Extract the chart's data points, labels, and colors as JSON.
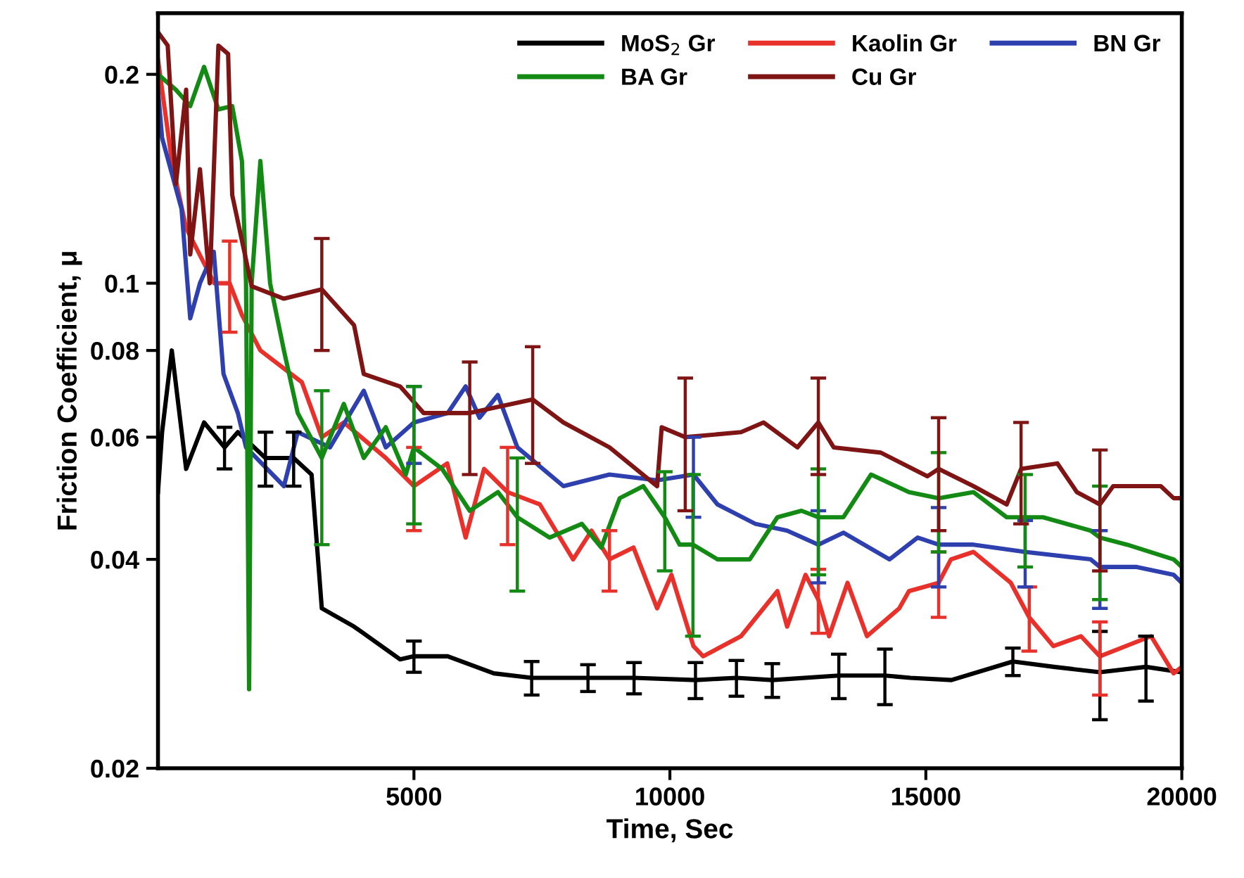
{
  "chart_data": {
    "type": "line",
    "xlabel": "Time, Sec",
    "ylabel": "Friction Coefficient, μ",
    "log": "y",
    "xlim": [
      0,
      20000
    ],
    "ylim": [
      0.02,
      0.245
    ],
    "xticks": [
      5000,
      10000,
      15000,
      20000
    ],
    "yticks": [
      0.02,
      0.04,
      0.06,
      0.08,
      0.1,
      0.2
    ],
    "grid": false,
    "legend": "top right",
    "marker": "none",
    "line_style": "solid",
    "series": [
      {
        "name": "MoS$_{2}$ Gr",
        "color": "#000000",
        "x": [
          0,
          80,
          270,
          550,
          900,
          1300,
          1560,
          2100,
          2650,
          3000,
          3200,
          3830,
          4730,
          5000,
          5660,
          6560,
          7300,
          8400,
          9300,
          10500,
          11300,
          12000,
          13300,
          14200,
          14700,
          15500,
          16700,
          17500,
          18400,
          19300,
          20000
        ],
        "values": [
          0.05,
          0.061,
          0.08,
          0.054,
          0.063,
          0.058,
          0.061,
          0.056,
          0.056,
          0.053,
          0.034,
          0.032,
          0.0287,
          0.029,
          0.029,
          0.0274,
          0.027,
          0.027,
          0.027,
          0.0268,
          0.027,
          0.0268,
          0.0272,
          0.0272,
          0.027,
          0.0268,
          0.0285,
          0.028,
          0.0275,
          0.028,
          0.0275
        ],
        "errors": [
          null,
          null,
          null,
          null,
          null,
          0.004,
          null,
          0.005,
          0.005,
          null,
          null,
          null,
          null,
          0.0015,
          null,
          null,
          0.0015,
          0.0012,
          0.0014,
          0.0016,
          0.0016,
          0.0015,
          0.002,
          0.0025,
          null,
          null,
          0.0013,
          null,
          0.004,
          0.003,
          null
        ]
      },
      {
        "name": "Kaolin Gr",
        "color": "#e8312a",
        "x": [
          0,
          270,
          550,
          1100,
          1400,
          1640,
          2000,
          2810,
          3200,
          3630,
          4450,
          5000,
          5650,
          6010,
          6370,
          6830,
          7460,
          8110,
          8470,
          8820,
          9290,
          9750,
          10030,
          10460,
          10650,
          11390,
          12100,
          12290,
          12650,
          12900,
          13110,
          13470,
          13850,
          14480,
          14670,
          15250,
          15490,
          15930,
          16660,
          17020,
          17490,
          18030,
          18400,
          19400,
          19840,
          20000
        ],
        "values": [
          0.21,
          0.15,
          0.12,
          0.1,
          0.1,
          0.09,
          0.08,
          0.072,
          0.06,
          0.063,
          0.056,
          0.051,
          0.055,
          0.043,
          0.054,
          0.05,
          0.048,
          0.04,
          0.044,
          0.04,
          0.0416,
          0.034,
          0.038,
          0.03,
          0.029,
          0.031,
          0.036,
          0.032,
          0.038,
          0.035,
          0.031,
          0.037,
          0.031,
          0.034,
          0.036,
          0.037,
          0.04,
          0.041,
          0.037,
          0.033,
          0.03,
          0.031,
          0.029,
          0.031,
          0.0274,
          0.028
        ],
        "errors": [
          null,
          null,
          null,
          null,
          0.015,
          null,
          null,
          null,
          null,
          null,
          null,
          0.007,
          null,
          null,
          null,
          0.008,
          null,
          null,
          null,
          0.004,
          null,
          null,
          null,
          null,
          null,
          null,
          null,
          null,
          null,
          0.0037,
          null,
          null,
          null,
          null,
          null,
          0.004,
          null,
          null,
          null,
          0.0035,
          null,
          null,
          0.0035,
          null,
          null,
          null
        ]
      },
      {
        "name": "BN Gr",
        "color": "#2e3fae",
        "x": [
          0,
          80,
          460,
          630,
          820,
          1090,
          1280,
          1560,
          1720,
          2460,
          2730,
          3360,
          4020,
          4450,
          5000,
          5660,
          6010,
          6280,
          6640,
          7020,
          7920,
          8820,
          9750,
          10460,
          10930,
          11670,
          12290,
          12900,
          13390,
          14290,
          14840,
          15250,
          15930,
          16940,
          18220,
          18400,
          19120,
          19840,
          20000
        ],
        "values": [
          0.19,
          0.162,
          0.128,
          0.089,
          0.1,
          0.111,
          0.074,
          0.065,
          0.058,
          0.051,
          0.061,
          0.058,
          0.07,
          0.058,
          0.063,
          0.065,
          0.071,
          0.064,
          0.069,
          0.058,
          0.051,
          0.053,
          0.052,
          0.053,
          0.048,
          0.045,
          0.044,
          0.042,
          0.0437,
          0.04,
          0.043,
          0.042,
          0.042,
          0.041,
          0.04,
          0.039,
          0.039,
          0.038,
          0.037
        ],
        "errors": [
          null,
          null,
          null,
          null,
          null,
          null,
          null,
          null,
          null,
          null,
          null,
          null,
          null,
          null,
          0.008,
          null,
          null,
          null,
          null,
          null,
          null,
          null,
          null,
          0.007,
          null,
          null,
          null,
          0.005,
          null,
          null,
          null,
          0.0055,
          null,
          0.0045,
          null,
          0.005,
          null,
          null,
          null
        ]
      },
      {
        "name": "BA Gr",
        "color": "#138a13",
        "x": [
          0,
          350,
          630,
          900,
          1180,
          1450,
          1640,
          1720,
          1780,
          1830,
          2000,
          2190,
          2460,
          2730,
          3200,
          3630,
          4020,
          4450,
          4840,
          5000,
          5550,
          6090,
          6640,
          7020,
          7650,
          8280,
          8660,
          9020,
          9480,
          9900,
          10190,
          10450,
          10930,
          11560,
          12100,
          12570,
          12900,
          13390,
          13930,
          14670,
          15250,
          15930,
          16580,
          16940,
          17290,
          18220,
          18400,
          18930,
          19840,
          20000
        ],
        "values": [
          0.2,
          0.19,
          0.18,
          0.205,
          0.178,
          0.18,
          0.15,
          0.1,
          0.026,
          0.1,
          0.15,
          0.1,
          0.08,
          0.065,
          0.056,
          0.067,
          0.056,
          0.062,
          0.053,
          0.058,
          0.054,
          0.047,
          0.05,
          0.046,
          0.043,
          0.045,
          0.0416,
          0.049,
          0.051,
          0.046,
          0.042,
          0.042,
          0.04,
          0.04,
          0.046,
          0.047,
          0.046,
          0.046,
          0.053,
          0.05,
          0.049,
          0.05,
          0.046,
          0.046,
          0.046,
          0.044,
          0.043,
          0.042,
          0.04,
          0.039
        ],
        "errors": [
          null,
          null,
          null,
          null,
          null,
          null,
          null,
          null,
          null,
          null,
          null,
          null,
          null,
          null,
          0.014,
          null,
          null,
          null,
          null,
          0.013,
          null,
          null,
          null,
          0.01,
          null,
          null,
          null,
          null,
          null,
          0.0075,
          null,
          0.011,
          null,
          null,
          null,
          null,
          0.008,
          null,
          null,
          null,
          0.008,
          null,
          null,
          0.007,
          null,
          null,
          0.008,
          null,
          null,
          null
        ]
      },
      {
        "name": "Cu Gr",
        "color": "#7f1414",
        "x": [
          0,
          190,
          350,
          550,
          630,
          820,
          1010,
          1180,
          1370,
          1450,
          1830,
          2460,
          3200,
          3830,
          4020,
          4730,
          5190,
          6090,
          7320,
          7920,
          8820,
          9750,
          9840,
          10300,
          11390,
          11830,
          12490,
          12900,
          13200,
          14120,
          15030,
          15250,
          15930,
          16580,
          16860,
          17570,
          17950,
          18400,
          18660,
          19590,
          19840,
          20000
        ],
        "values": [
          0.23,
          0.22,
          0.139,
          0.19,
          0.11,
          0.146,
          0.1,
          0.22,
          0.214,
          0.134,
          0.099,
          0.095,
          0.098,
          0.087,
          0.074,
          0.071,
          0.065,
          0.065,
          0.068,
          0.063,
          0.058,
          0.051,
          0.062,
          0.06,
          0.061,
          0.063,
          0.058,
          0.063,
          0.058,
          0.057,
          0.0527,
          0.054,
          0.051,
          0.048,
          0.054,
          0.055,
          0.05,
          0.048,
          0.051,
          0.051,
          0.049,
          0.049
        ],
        "errors": [
          null,
          null,
          null,
          null,
          null,
          null,
          null,
          null,
          null,
          null,
          null,
          null,
          0.018,
          null,
          null,
          null,
          null,
          0.012,
          0.013,
          null,
          null,
          null,
          null,
          0.013,
          null,
          null,
          null,
          0.01,
          null,
          null,
          null,
          0.01,
          null,
          null,
          0.009,
          null,
          null,
          0.0095,
          null,
          null,
          null,
          null
        ]
      }
    ]
  }
}
